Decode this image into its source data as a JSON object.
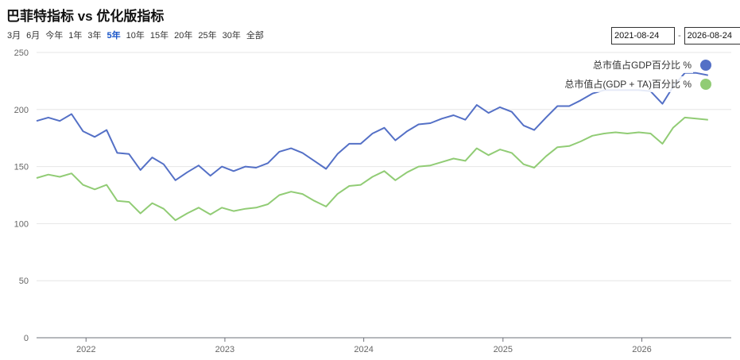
{
  "header": {
    "title": "巴菲特指标 vs 优化版指标"
  },
  "range_buttons": [
    {
      "label": "3月",
      "active": false
    },
    {
      "label": "6月",
      "active": false
    },
    {
      "label": "今年",
      "active": false
    },
    {
      "label": "1年",
      "active": false
    },
    {
      "label": "3年",
      "active": false
    },
    {
      "label": "5年",
      "active": true
    },
    {
      "label": "10年",
      "active": false
    },
    {
      "label": "15年",
      "active": false
    },
    {
      "label": "20年",
      "active": false
    },
    {
      "label": "25年",
      "active": false
    },
    {
      "label": "30年",
      "active": false
    },
    {
      "label": "全部",
      "active": false
    }
  ],
  "date_range": {
    "start": "2021-08-24",
    "separator": "-",
    "end": "2026-08-24"
  },
  "chart_data": {
    "type": "line",
    "ylim": [
      0,
      250
    ],
    "yticks": [
      0,
      50,
      100,
      150,
      200,
      250
    ],
    "xlim": [
      "2021-08-24",
      "2026-08-24"
    ],
    "xticks": [
      "2022",
      "2023",
      "2024",
      "2025",
      "2026"
    ],
    "grid": true,
    "legend_position": "top-right",
    "series": [
      {
        "name": "总市值占GDP百分比 %",
        "color": "#5470c6",
        "points": [
          [
            "2021-08-24",
            190
          ],
          [
            "2021-09-24",
            193
          ],
          [
            "2021-10-24",
            190
          ],
          [
            "2021-11-24",
            196
          ],
          [
            "2021-12-24",
            181
          ],
          [
            "2022-01-24",
            176
          ],
          [
            "2022-02-24",
            182
          ],
          [
            "2022-03-24",
            162
          ],
          [
            "2022-04-24",
            161
          ],
          [
            "2022-05-24",
            147
          ],
          [
            "2022-06-24",
            158
          ],
          [
            "2022-07-24",
            152
          ],
          [
            "2022-08-24",
            138
          ],
          [
            "2022-09-24",
            145
          ],
          [
            "2022-10-24",
            151
          ],
          [
            "2022-11-24",
            142
          ],
          [
            "2022-12-24",
            150
          ],
          [
            "2023-01-24",
            146
          ],
          [
            "2023-02-24",
            150
          ],
          [
            "2023-03-24",
            149
          ],
          [
            "2023-04-24",
            153
          ],
          [
            "2023-05-24",
            163
          ],
          [
            "2023-06-24",
            166
          ],
          [
            "2023-07-24",
            162
          ],
          [
            "2023-08-24",
            155
          ],
          [
            "2023-09-24",
            148
          ],
          [
            "2023-10-24",
            161
          ],
          [
            "2023-11-24",
            170
          ],
          [
            "2023-12-24",
            170
          ],
          [
            "2024-01-24",
            179
          ],
          [
            "2024-02-24",
            184
          ],
          [
            "2024-03-24",
            173
          ],
          [
            "2024-04-24",
            181
          ],
          [
            "2024-05-24",
            187
          ],
          [
            "2024-06-24",
            188
          ],
          [
            "2024-07-24",
            192
          ],
          [
            "2024-08-24",
            195
          ],
          [
            "2024-09-24",
            191
          ],
          [
            "2024-10-24",
            204
          ],
          [
            "2024-11-24",
            197
          ],
          [
            "2024-12-24",
            202
          ],
          [
            "2025-01-24",
            198
          ],
          [
            "2025-02-24",
            186
          ],
          [
            "2025-03-24",
            182
          ],
          [
            "2025-04-24",
            193
          ],
          [
            "2025-05-24",
            203
          ],
          [
            "2025-06-24",
            203
          ],
          [
            "2025-07-24",
            208
          ],
          [
            "2025-08-24",
            214
          ],
          [
            "2025-09-24",
            217
          ],
          [
            "2025-10-24",
            217
          ],
          [
            "2025-11-24",
            217
          ],
          [
            "2025-12-24",
            217
          ],
          [
            "2026-01-24",
            216
          ],
          [
            "2026-02-24",
            205
          ],
          [
            "2026-03-24",
            220
          ],
          [
            "2026-04-24",
            232
          ],
          [
            "2026-05-24",
            232
          ],
          [
            "2026-06-24",
            230
          ]
        ]
      },
      {
        "name": "总市值占(GDP + TA)百分比 %",
        "color": "#91cc75",
        "points": [
          [
            "2021-08-24",
            140
          ],
          [
            "2021-09-24",
            143
          ],
          [
            "2021-10-24",
            141
          ],
          [
            "2021-11-24",
            144
          ],
          [
            "2021-12-24",
            134
          ],
          [
            "2022-01-24",
            130
          ],
          [
            "2022-02-24",
            134
          ],
          [
            "2022-03-24",
            120
          ],
          [
            "2022-04-24",
            119
          ],
          [
            "2022-05-24",
            109
          ],
          [
            "2022-06-24",
            118
          ],
          [
            "2022-07-24",
            113
          ],
          [
            "2022-08-24",
            103
          ],
          [
            "2022-09-24",
            109
          ],
          [
            "2022-10-24",
            114
          ],
          [
            "2022-11-24",
            108
          ],
          [
            "2022-12-24",
            114
          ],
          [
            "2023-01-24",
            111
          ],
          [
            "2023-02-24",
            113
          ],
          [
            "2023-03-24",
            114
          ],
          [
            "2023-04-24",
            117
          ],
          [
            "2023-05-24",
            125
          ],
          [
            "2023-06-24",
            128
          ],
          [
            "2023-07-24",
            126
          ],
          [
            "2023-08-24",
            120
          ],
          [
            "2023-09-24",
            115
          ],
          [
            "2023-10-24",
            126
          ],
          [
            "2023-11-24",
            133
          ],
          [
            "2023-12-24",
            134
          ],
          [
            "2024-01-24",
            141
          ],
          [
            "2024-02-24",
            146
          ],
          [
            "2024-03-24",
            138
          ],
          [
            "2024-04-24",
            145
          ],
          [
            "2024-05-24",
            150
          ],
          [
            "2024-06-24",
            151
          ],
          [
            "2024-07-24",
            154
          ],
          [
            "2024-08-24",
            157
          ],
          [
            "2024-09-24",
            155
          ],
          [
            "2024-10-24",
            166
          ],
          [
            "2024-11-24",
            160
          ],
          [
            "2024-12-24",
            165
          ],
          [
            "2025-01-24",
            162
          ],
          [
            "2025-02-24",
            152
          ],
          [
            "2025-03-24",
            149
          ],
          [
            "2025-04-24",
            159
          ],
          [
            "2025-05-24",
            167
          ],
          [
            "2025-06-24",
            168
          ],
          [
            "2025-07-24",
            172
          ],
          [
            "2025-08-24",
            177
          ],
          [
            "2025-09-24",
            179
          ],
          [
            "2025-10-24",
            180
          ],
          [
            "2025-11-24",
            179
          ],
          [
            "2025-12-24",
            180
          ],
          [
            "2026-01-24",
            179
          ],
          [
            "2026-02-24",
            170
          ],
          [
            "2026-03-24",
            184
          ],
          [
            "2026-04-24",
            193
          ],
          [
            "2026-05-24",
            192
          ],
          [
            "2026-06-24",
            191
          ]
        ]
      }
    ]
  }
}
